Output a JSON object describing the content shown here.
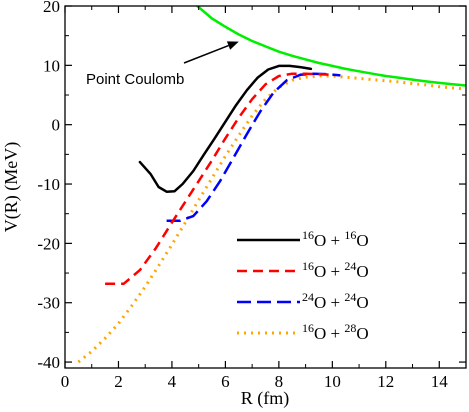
{
  "chart_data": {
    "type": "line",
    "xlabel": "R (fm)",
    "ylabel": "V(R)  (MeV)",
    "xlim": [
      0,
      15
    ],
    "ylim": [
      -41,
      20
    ],
    "x_ticks": [
      0,
      2,
      4,
      6,
      8,
      10,
      12,
      14
    ],
    "y_ticks": [
      -40,
      -30,
      -20,
      -10,
      0,
      10,
      20
    ],
    "grid": false,
    "legend_position": "bottom-right",
    "annotation": {
      "text": "Point Coulomb",
      "arrow_to": [
        6.5,
        14.0
      ]
    },
    "series": [
      {
        "name": "16O + 16O",
        "legend": {
          "n1": "16",
          "e1": "O + ",
          "n2": "16",
          "e2": "O"
        },
        "color": "#000000",
        "dash": "solid",
        "width": 2.5,
        "x": [
          2.8,
          3.2,
          3.5,
          3.8,
          4.1,
          4.4,
          4.8,
          5.2,
          5.6,
          6.0,
          6.4,
          6.8,
          7.2,
          7.6,
          8.0,
          8.4,
          8.8,
          9.2
        ],
        "y": [
          -6.3,
          -8.3,
          -10.5,
          -11.3,
          -11.2,
          -10.0,
          -7.8,
          -5.0,
          -2.3,
          0.5,
          3.3,
          5.8,
          7.9,
          9.3,
          9.9,
          9.9,
          9.7,
          9.4
        ]
      },
      {
        "name": "16O + 24O",
        "legend": {
          "n1": "16",
          "e1": "O + ",
          "n2": "24",
          "e2": "O"
        },
        "color": "#ff0000",
        "dash": "10,6",
        "width": 2.5,
        "x": [
          1.5,
          2.2,
          2.8,
          3.4,
          4.0,
          4.5,
          5.0,
          5.5,
          6.0,
          6.5,
          7.0,
          7.5,
          8.0,
          8.5,
          9.0,
          9.5,
          10.0
        ],
        "y": [
          -26.8,
          -26.8,
          -24.5,
          -20.8,
          -16.5,
          -13.0,
          -9.5,
          -6.0,
          -2.3,
          1.2,
          4.3,
          6.8,
          8.2,
          8.6,
          8.6,
          8.5,
          8.4
        ]
      },
      {
        "name": "24O + 24O",
        "legend": {
          "n1": "24",
          "e1": "O + ",
          "n2": "24",
          "e2": "O"
        },
        "color": "#0000ff",
        "dash": "14,6",
        "width": 2.5,
        "x": [
          3.8,
          4.3,
          4.8,
          5.3,
          5.8,
          6.3,
          6.8,
          7.3,
          7.8,
          8.3,
          8.8,
          9.3,
          9.8,
          10.3
        ],
        "y": [
          -16.2,
          -16.2,
          -15.4,
          -12.9,
          -9.5,
          -5.6,
          -1.6,
          2.2,
          5.4,
          7.5,
          8.4,
          8.6,
          8.5,
          8.3
        ]
      },
      {
        "name": "16O + 28O",
        "legend": {
          "n1": "16",
          "e1": "O + ",
          "n2": "28",
          "e2": "O"
        },
        "color": "#ffa500",
        "dash": "2,5",
        "width": 3,
        "x": [
          0.5,
          1.0,
          1.5,
          2.0,
          2.5,
          3.0,
          3.5,
          4.0,
          4.5,
          5.0,
          5.5,
          6.0,
          6.5,
          7.0,
          7.5,
          8.0,
          8.5,
          9.0,
          9.5,
          10.0,
          10.5,
          11.0,
          11.5,
          12.0,
          12.5,
          13.0,
          13.5,
          14.0,
          14.5,
          15.0
        ],
        "y": [
          -40.0,
          -38.2,
          -36.0,
          -33.5,
          -30.5,
          -27.3,
          -23.8,
          -20.2,
          -16.5,
          -12.7,
          -9.0,
          -5.3,
          -1.8,
          1.5,
          4.3,
          6.3,
          7.5,
          8.0,
          8.2,
          8.2,
          8.0,
          7.8,
          7.6,
          7.4,
          7.2,
          6.9,
          6.7,
          6.4,
          6.2,
          6.0
        ]
      },
      {
        "name": "Point Coulomb",
        "color": "#00ee00",
        "dash": "solid",
        "width": 2.5,
        "x": [
          4.95,
          5.5,
          6.0,
          6.5,
          7.0,
          7.5,
          8.0,
          8.5,
          9.0,
          9.5,
          10.0,
          10.5,
          11.0,
          11.5,
          12.0,
          12.5,
          13.0,
          13.5,
          14.0,
          14.5,
          15.0
        ],
        "y": [
          20.0,
          17.9,
          16.5,
          15.2,
          14.1,
          13.2,
          12.3,
          11.6,
          11.0,
          10.4,
          9.9,
          9.4,
          9.0,
          8.6,
          8.2,
          7.9,
          7.6,
          7.3,
          7.05,
          6.8,
          6.6
        ]
      }
    ]
  }
}
